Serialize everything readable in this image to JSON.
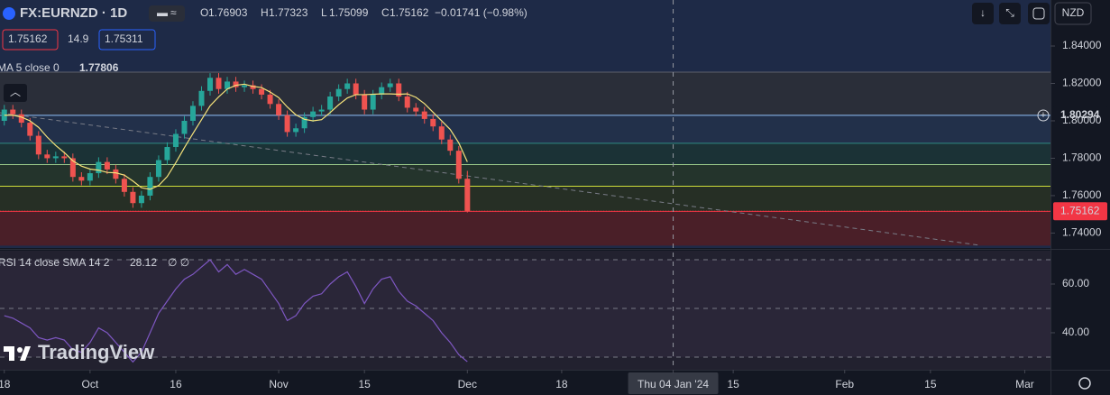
{
  "chart_data": {
    "type": "candlestick",
    "symbol": "FX:EURNZD · 1D",
    "ohlc_letters": [
      "O",
      "H",
      "L",
      "C"
    ],
    "change": "−0.01741 (−0.98%)",
    "spread": 14.9,
    "ask": 1.75311,
    "currency": "NZD",
    "brand": "TradingView",
    "up_color": "#26a69a",
    "down_color": "#ef5350",
    "open": [
      1.8,
      1.806,
      1.8035,
      1.799,
      1.792,
      1.782,
      1.78,
      1.781,
      1.78,
      1.77,
      1.768,
      1.772,
      1.778,
      1.774,
      1.769,
      1.762,
      1.756,
      1.76,
      1.77,
      1.779,
      1.786,
      1.793,
      1.8,
      1.808,
      1.816,
      1.823,
      1.817,
      1.821,
      1.818,
      1.819,
      1.817,
      1.814,
      1.809,
      1.803,
      1.794,
      1.796,
      1.802,
      1.805,
      1.806,
      1.813,
      1.817,
      1.82,
      1.814,
      1.806,
      1.814,
      1.818,
      1.82,
      1.813,
      1.807,
      1.805,
      1.801,
      1.797,
      1.79,
      1.784,
      1.76903
    ],
    "high": [
      1.8085,
      1.8085,
      1.806,
      1.8015,
      1.7945,
      1.7845,
      1.7835,
      1.7835,
      1.7825,
      1.7725,
      1.7745,
      1.7805,
      1.7805,
      1.7765,
      1.7715,
      1.7645,
      1.7625,
      1.7725,
      1.7815,
      1.7885,
      1.7955,
      1.8025,
      1.8105,
      1.8185,
      1.8255,
      1.8255,
      1.8235,
      1.8235,
      1.8215,
      1.8215,
      1.8195,
      1.8165,
      1.8115,
      1.8055,
      1.7985,
      1.8045,
      1.8075,
      1.8085,
      1.8155,
      1.8195,
      1.8225,
      1.8225,
      1.8165,
      1.8165,
      1.8205,
      1.8225,
      1.8225,
      1.8155,
      1.8095,
      1.8075,
      1.8035,
      1.7995,
      1.7925,
      1.7865,
      1.77323
    ],
    "low": [
      1.7975,
      1.801,
      1.7965,
      1.7895,
      1.7795,
      1.7775,
      1.7775,
      1.7775,
      1.7675,
      1.7655,
      1.7655,
      1.7695,
      1.7715,
      1.7665,
      1.7595,
      1.7535,
      1.7535,
      1.7575,
      1.7675,
      1.7765,
      1.7835,
      1.7905,
      1.7975,
      1.8055,
      1.8135,
      1.8145,
      1.8145,
      1.8155,
      1.8155,
      1.8145,
      1.8115,
      1.8065,
      1.8005,
      1.7915,
      1.7915,
      1.7935,
      1.7995,
      1.8025,
      1.8035,
      1.8105,
      1.8145,
      1.8115,
      1.8035,
      1.8035,
      1.8115,
      1.8155,
      1.8105,
      1.8045,
      1.8025,
      1.7985,
      1.7945,
      1.7875,
      1.7815,
      1.7665,
      1.75099
    ],
    "close": [
      1.806,
      1.8035,
      1.799,
      1.792,
      1.782,
      1.78,
      1.781,
      1.78,
      1.77,
      1.768,
      1.772,
      1.778,
      1.774,
      1.769,
      1.762,
      1.756,
      1.76,
      1.77,
      1.779,
      1.786,
      1.793,
      1.8,
      1.808,
      1.816,
      1.823,
      1.817,
      1.821,
      1.818,
      1.819,
      1.817,
      1.814,
      1.809,
      1.803,
      1.794,
      1.796,
      1.802,
      1.805,
      1.806,
      1.813,
      1.817,
      1.82,
      1.814,
      1.806,
      1.814,
      1.818,
      1.82,
      1.813,
      1.807,
      1.805,
      1.801,
      1.797,
      1.79,
      1.784,
      1.769,
      1.75162
    ],
    "ma": {
      "name": "MA 5 close 0",
      "color": "#f5e27a",
      "values": [
        1.803,
        1.803,
        1.802,
        1.8,
        1.7965,
        1.7913,
        1.7868,
        1.783,
        1.7786,
        1.7758,
        1.7742,
        1.7736,
        1.7724,
        1.7722,
        1.771,
        1.7678,
        1.7642,
        1.7634,
        1.7654,
        1.7702,
        1.7776,
        1.7856,
        1.7932,
        1.8006,
        1.808,
        1.8128,
        1.817,
        1.819,
        1.8196,
        1.8184,
        1.8178,
        1.8154,
        1.8124,
        1.8074,
        1.8032,
        1.8008,
        1.8,
        1.8006,
        1.8044,
        1.8086,
        1.8122,
        1.814,
        1.814,
        1.8142,
        1.8144,
        1.8144,
        1.8142,
        1.8144,
        1.8126,
        1.8092,
        1.8046,
        1.8,
        1.7954,
        1.7882,
        1.77806
      ]
    },
    "xlim": [
      -0.5,
      122
    ],
    "xticks": [
      {
        "value": 0,
        "label": "18"
      },
      {
        "value": 10,
        "label": "Oct"
      },
      {
        "value": 20,
        "label": "16"
      },
      {
        "value": 32,
        "label": "Nov"
      },
      {
        "value": 42,
        "label": "15"
      },
      {
        "value": 54,
        "label": "Dec"
      },
      {
        "value": 65,
        "label": "18"
      },
      {
        "value": 78,
        "label": "Thu 04 Jan '24"
      },
      {
        "value": 85,
        "label": "15"
      },
      {
        "value": 98,
        "label": "Feb"
      },
      {
        "value": 108,
        "label": "15"
      },
      {
        "value": 119,
        "label": "Mar"
      }
    ],
    "crosshair_tick": 7,
    "ylim": [
      1.732,
      1.8646
    ],
    "yticks": [
      {
        "value": 1.84,
        "label": "1.84000"
      },
      {
        "value": 1.82,
        "label": "1.82000"
      },
      {
        "value": 1.8,
        "label": "1.80000"
      },
      {
        "value": 1.78,
        "label": "1.78000"
      },
      {
        "value": 1.76,
        "label": "1.76000"
      },
      {
        "value": 1.74,
        "label": "1.74000"
      }
    ],
    "levels": [
      {
        "value": 1.826,
        "color": "#5d606b",
        "fill": "#2a2e39"
      },
      {
        "value": 1.80294,
        "label": "1.80294",
        "color": "#90bff9",
        "fill": "#22304a"
      },
      {
        "value": 1.788,
        "color": "#2e8b84",
        "fill": "#1b3236"
      },
      {
        "value": 1.7766,
        "color": "#9bc98a",
        "fill": "#24342c"
      },
      {
        "value": 1.765,
        "color": "#cddc39",
        "fill": "#262f25"
      },
      {
        "value": 1.7516,
        "color": "#f23645",
        "fill": "#4a1f28"
      },
      {
        "value": 1.7335,
        "color": "#4a1f28"
      }
    ],
    "trendline": {
      "x": [
        -0.5,
        113.7
      ],
      "y": [
        1.8043,
        1.7335
      ]
    },
    "rsi": {
      "name": "RSI 14 close SMA 14 2",
      "na": "∅ ∅",
      "color": "#7e57c2",
      "values": [
        47,
        46,
        44,
        42,
        38,
        37,
        38,
        37,
        33,
        32,
        36,
        42,
        40,
        36,
        32,
        28,
        32,
        40,
        48,
        53,
        58,
        62,
        64,
        67,
        70,
        65,
        68,
        64,
        66,
        64,
        62,
        57,
        52,
        45,
        47,
        52,
        55,
        56,
        60,
        63,
        65,
        59,
        52,
        58,
        62,
        63,
        57,
        53,
        51,
        48,
        45,
        40,
        36,
        31,
        28.12
      ],
      "ylim": [
        24.8,
        73.7
      ],
      "yticks": [
        {
          "value": 60,
          "label": "60.00"
        },
        {
          "value": 40,
          "label": "40.00"
        }
      ],
      "levels": [
        70,
        50,
        30
      ]
    }
  }
}
